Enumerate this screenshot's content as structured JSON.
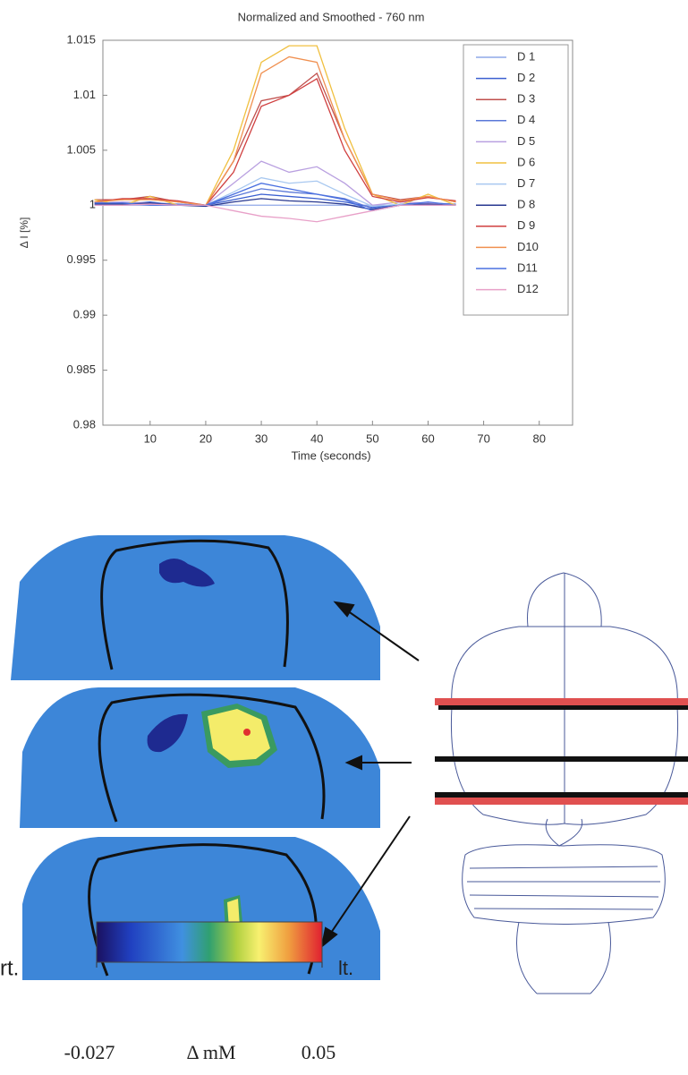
{
  "chart_data": {
    "type": "line",
    "title": "Normalized and Smoothed  - 760 nm",
    "xlabel": "Time (seconds)",
    "ylabel": "Δ I [%]",
    "x": [
      0,
      5,
      10,
      15,
      20,
      25,
      30,
      35,
      40,
      45,
      50,
      55,
      60,
      65
    ],
    "xlim": [
      1.5,
      86
    ],
    "xticks": [
      10,
      20,
      30,
      40,
      50,
      60,
      70,
      80
    ],
    "ylim": [
      0.98,
      1.015
    ],
    "yticks": [
      0.98,
      0.985,
      0.99,
      0.995,
      1,
      1.005,
      1.01,
      1.015
    ],
    "series": [
      {
        "name": "D 1",
        "color": "#8fa8e8",
        "values": [
          1.0,
          1.0,
          1.0,
          1.0,
          1.0,
          1.0,
          1.0,
          1.0,
          1.0,
          1.0,
          1.0,
          1.0,
          1.0,
          1.0
        ]
      },
      {
        "name": "D 2",
        "color": "#3a5fd0",
        "values": [
          1.0002,
          1.0001,
          1.0003,
          1.0,
          1.0,
          1.0005,
          1.001,
          1.0008,
          1.0006,
          1.0003,
          0.9998,
          1.0001,
          1.0002,
          1.0
        ]
      },
      {
        "name": "D 3",
        "color": "#c0504d",
        "values": [
          1.0005,
          1.0005,
          1.0008,
          1.0003,
          1.0,
          1.004,
          1.0095,
          1.01,
          1.012,
          1.006,
          1.001,
          1.0005,
          1.0008,
          1.0003
        ]
      },
      {
        "name": "D 4",
        "color": "#5a78d8",
        "values": [
          1.0003,
          1.0002,
          1.0002,
          1.0001,
          1.0,
          1.0008,
          1.0015,
          1.0012,
          1.001,
          1.0006,
          0.9997,
          1.0,
          1.0002,
          1.0001
        ]
      },
      {
        "name": "D 5",
        "color": "#b9a0e0",
        "values": [
          1.0002,
          1.0003,
          1.0002,
          1.0,
          1.0,
          1.002,
          1.004,
          1.003,
          1.0035,
          1.002,
          1.0,
          1.0003,
          1.0002,
          1.0
        ]
      },
      {
        "name": "D 6",
        "color": "#f0c040",
        "values": [
          1.0005,
          1.0,
          1.0008,
          1.0,
          1.0,
          1.005,
          1.013,
          1.0145,
          1.0145,
          1.007,
          1.001,
          1.0,
          1.001,
          1.0
        ]
      },
      {
        "name": "D 7",
        "color": "#a8c8f0",
        "values": [
          1.0001,
          1.0002,
          1.0001,
          1.0,
          1.0,
          1.0012,
          1.0025,
          1.002,
          1.0022,
          1.001,
          0.9999,
          1.0001,
          1.0,
          1.0
        ]
      },
      {
        "name": "D 8",
        "color": "#283890",
        "values": [
          1.0001,
          1.0001,
          1.0002,
          1.0,
          0.9999,
          1.0003,
          1.0006,
          1.0004,
          1.0003,
          1.0001,
          0.9996,
          1.0,
          1.0001,
          1.0
        ]
      },
      {
        "name": "D 9",
        "color": "#d04040",
        "values": [
          1.0003,
          1.0006,
          1.0006,
          1.0004,
          1.0,
          1.003,
          1.009,
          1.01,
          1.0115,
          1.005,
          1.0008,
          1.0003,
          1.0007,
          1.0004
        ]
      },
      {
        "name": "D10",
        "color": "#f09050",
        "values": [
          1.0003,
          1.0005,
          1.0005,
          1.0003,
          1.0,
          1.004,
          1.012,
          1.0135,
          1.013,
          1.006,
          1.001,
          1.0004,
          1.0008,
          1.0003
        ]
      },
      {
        "name": "D11",
        "color": "#4a70e0",
        "values": [
          1.0002,
          1.0002,
          1.0,
          1.0,
          1.0,
          1.001,
          1.002,
          1.0015,
          1.001,
          1.0005,
          0.9995,
          1.0,
          1.0003,
          1.0
        ]
      },
      {
        "name": "D12",
        "color": "#e8a0c8",
        "values": [
          1.0,
          1.0,
          1.0001,
          1.0,
          1.0,
          0.9995,
          0.999,
          0.9988,
          0.9985,
          0.999,
          0.9995,
          1.0,
          1.0,
          1.0
        ]
      }
    ]
  },
  "figure": {
    "left_label": "rt.",
    "right_label": "lt.",
    "colorbar": {
      "label": "Δ mM",
      "min": -0.027,
      "max": 0.05
    }
  }
}
